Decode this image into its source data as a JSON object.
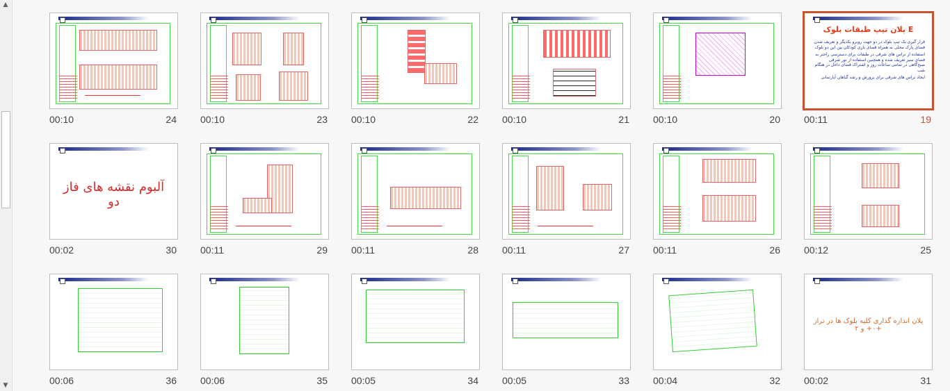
{
  "scrollbar": {
    "up_icon": "▲",
    "down_icon": "▼"
  },
  "selected_slide": "19",
  "slides": {
    "s24": {
      "time": "00:10",
      "number": "24"
    },
    "s23": {
      "time": "00:10",
      "number": "23"
    },
    "s22": {
      "time": "00:10",
      "number": "22"
    },
    "s21": {
      "time": "00:10",
      "number": "21"
    },
    "s20": {
      "time": "00:10",
      "number": "20"
    },
    "s19": {
      "time": "00:11",
      "number": "19",
      "title": "پلان تیپ طبقات بلوک E",
      "bullets": [
        "قرار گیری یک تیپ بلوک در دو جهت رو‌برو یکدیگر و تعریف شدن فضای پارک محلی به همراه فضای بازی کودکان بین این دو بلوک",
        "استفاده از تراس های شرقی در طبقات برای دسترسی راحتر به فضای سبز تعریف شده و همچنین استفاده از نور شرقی صبح‌گاهی در تمامی ساعات روز و اشتراک فضای داخل در هنگام شب",
        "ایجاد تراس های شرقی برای پرورش و رشد گیاهان آپارتمانی"
      ]
    },
    "s30": {
      "time": "00:02",
      "number": "30",
      "title": "آلبوم نقشه های فاز دو"
    },
    "s29": {
      "time": "00:11",
      "number": "29"
    },
    "s28": {
      "time": "00:11",
      "number": "28"
    },
    "s27": {
      "time": "00:11",
      "number": "27"
    },
    "s26": {
      "time": "00:11",
      "number": "26"
    },
    "s25": {
      "time": "00:12",
      "number": "25"
    },
    "s36": {
      "time": "00:06",
      "number": "36"
    },
    "s35": {
      "time": "00:06",
      "number": "35"
    },
    "s34": {
      "time": "00:05",
      "number": "34"
    },
    "s33": {
      "time": "00:05",
      "number": "33"
    },
    "s32": {
      "time": "00:04",
      "number": "32"
    },
    "s31": {
      "time": "00:02",
      "number": "31",
      "title": "پلان اندازه گذاری کلیه بلوک ها در تراز ۰+ و ۲+"
    }
  }
}
